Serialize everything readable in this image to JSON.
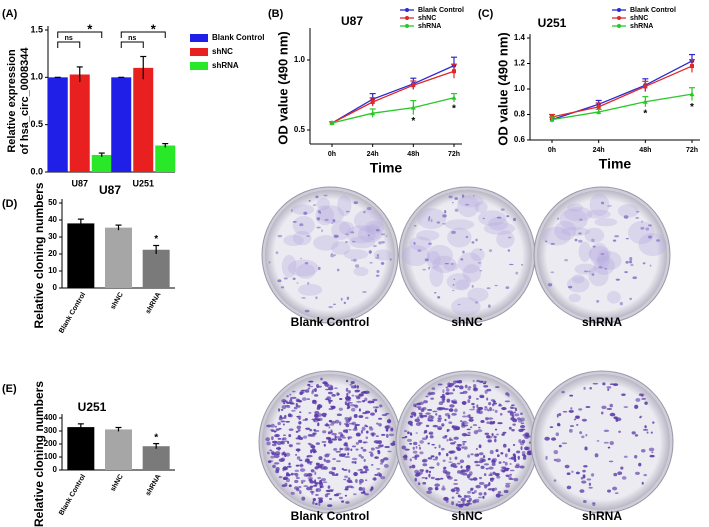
{
  "chart_data": [
    {
      "type": "bar",
      "panel": "(A)",
      "ylabel": [
        "Relative expression",
        "of hsa_circ_0008344"
      ],
      "categories": [
        "U87",
        "U251"
      ],
      "series": [
        {
          "name": "Blank Control",
          "color": "#1f1fe8",
          "values": [
            1.0,
            1.0
          ],
          "errors": [
            0,
            0
          ]
        },
        {
          "name": "shNC",
          "color": "#e82020",
          "values": [
            1.03,
            1.1
          ],
          "errors": [
            0.08,
            0.12
          ]
        },
        {
          "name": "shRNA",
          "color": "#28e828",
          "values": [
            0.18,
            0.28
          ],
          "errors": [
            0.02,
            0.02
          ]
        }
      ],
      "ylim": [
        0,
        1.5
      ],
      "yticks": [
        {
          "value": 0,
          "label": "0.0"
        },
        {
          "value": 0.5,
          "label": "0.5"
        },
        {
          "value": 1,
          "label": "1.0"
        },
        {
          "value": 1.5,
          "label": "1.5"
        }
      ],
      "annotations": [
        "ns",
        "*",
        "ns",
        "*"
      ],
      "legend": "right"
    },
    {
      "type": "line",
      "panel": "(B)",
      "title": "U87",
      "ylabel": "OD value (490 nm)",
      "xlabel": "Time",
      "categories": [
        "0h",
        "24h",
        "48h",
        "72h"
      ],
      "series": [
        {
          "name": "Blank Control",
          "color": "#2a2ad0",
          "values": [
            0.55,
            0.72,
            0.83,
            0.96
          ],
          "errors": [
            0.01,
            0.04,
            0.04,
            0.06
          ]
        },
        {
          "name": "shNC",
          "color": "#e02828",
          "values": [
            0.55,
            0.7,
            0.82,
            0.92
          ],
          "errors": [
            0.01,
            0.03,
            0.03,
            0.05
          ]
        },
        {
          "name": "shRNA",
          "color": "#28c828",
          "values": [
            0.55,
            0.62,
            0.66,
            0.73
          ],
          "errors": [
            0.01,
            0.03,
            0.05,
            0.03
          ]
        }
      ],
      "ylim": [
        0.4,
        1.2
      ],
      "yticks": [
        0.5,
        {
          "value": 1,
          "label": "1.0"
        }
      ],
      "annotations": [
        "*",
        "*"
      ],
      "legend": "upper right"
    },
    {
      "type": "line",
      "panel": "(C)",
      "title": "U251",
      "ylabel": "OD value (490 nm)",
      "xlabel": "Time",
      "categories": [
        "0h",
        "24h",
        "48h",
        "72h"
      ],
      "series": [
        {
          "name": "Blank Control",
          "color": "#2a2ad0",
          "values": [
            0.76,
            0.88,
            1.03,
            1.22
          ],
          "errors": [
            0.02,
            0.03,
            0.05,
            0.05
          ]
        },
        {
          "name": "shNC",
          "color": "#e02828",
          "values": [
            0.78,
            0.86,
            1.02,
            1.18
          ],
          "errors": [
            0.02,
            0.03,
            0.04,
            0.05
          ]
        },
        {
          "name": "shRNA",
          "color": "#28c828",
          "values": [
            0.76,
            0.82,
            0.9,
            0.96
          ],
          "errors": [
            0.02,
            0.02,
            0.04,
            0.05
          ]
        }
      ],
      "ylim": [
        0.6,
        1.4
      ],
      "yticks": [
        0.6,
        0.8,
        {
          "value": 1,
          "label": "1.0"
        },
        1.2,
        1.4
      ],
      "annotations": [
        "*",
        "*"
      ],
      "legend": "upper right"
    },
    {
      "type": "column",
      "panel": "(D)",
      "title": "U87",
      "ylabel": "Relative cloning numbers",
      "categories": [
        "Blank Control",
        "shNC",
        "shRNA"
      ],
      "values": [
        38,
        35.5,
        22.5
      ],
      "errors": [
        2.5,
        1.5,
        2.5
      ],
      "colors": [
        "#000000",
        "#a6a6a6",
        "#7a7a7a"
      ],
      "ylim": [
        0,
        50
      ],
      "yticks": [
        0,
        10,
        20,
        30,
        40,
        50
      ],
      "annotations": [
        "*"
      ]
    },
    {
      "type": "column",
      "panel": "(E)",
      "title": "U251",
      "ylabel": "Relative cloning numbers",
      "categories": [
        "Blank Control",
        "shNC",
        "shRNA"
      ],
      "values": [
        330,
        312,
        183
      ],
      "errors": [
        25,
        15,
        20
      ],
      "colors": [
        "#000000",
        "#a6a6a6",
        "#7a7a7a"
      ],
      "ylim": [
        0,
        400
      ],
      "yticks": [
        0,
        100,
        200,
        300,
        400
      ],
      "annotations": [
        "*"
      ]
    }
  ],
  "dishes": [
    [
      "Blank Control",
      "shNC",
      "shRNA"
    ],
    [
      "Blank Control",
      "shNC",
      "shRNA"
    ]
  ]
}
